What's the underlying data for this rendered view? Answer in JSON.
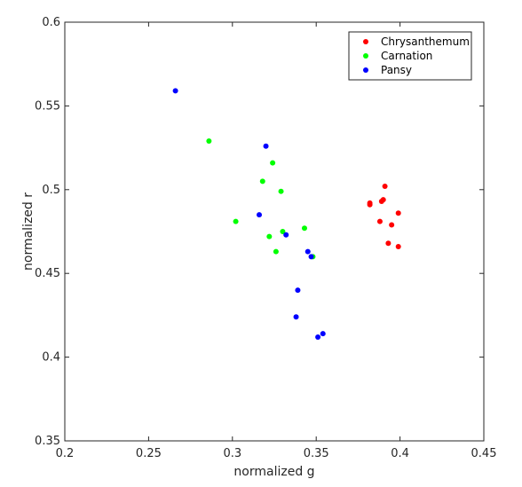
{
  "chart_data": {
    "type": "scatter",
    "xlabel": "normalized g",
    "ylabel": "normalized r",
    "xlim": [
      0.2,
      0.45
    ],
    "ylim": [
      0.35,
      0.6
    ],
    "xticks": [
      "0.2",
      "0.25",
      "0.3",
      "0.35",
      "0.4",
      "0.45"
    ],
    "yticks": [
      "0.35",
      "0.4",
      "0.45",
      "0.5",
      "0.55",
      "0.6"
    ],
    "legend_position": "top-right",
    "grid": false,
    "series": [
      {
        "name": "Chrysanthemum",
        "color": "#ff0000",
        "x": [
          0.391,
          0.382,
          0.389,
          0.39,
          0.382,
          0.399,
          0.388,
          0.395,
          0.393,
          0.399
        ],
        "y": [
          0.502,
          0.492,
          0.493,
          0.494,
          0.491,
          0.486,
          0.481,
          0.479,
          0.468,
          0.466
        ]
      },
      {
        "name": "Carnation",
        "color": "#00ff00",
        "x": [
          0.286,
          0.324,
          0.318,
          0.329,
          0.302,
          0.343,
          0.33,
          0.322,
          0.326,
          0.348
        ],
        "y": [
          0.529,
          0.516,
          0.505,
          0.499,
          0.481,
          0.477,
          0.475,
          0.472,
          0.463,
          0.46
        ]
      },
      {
        "name": "Pansy",
        "color": "#0000ff",
        "x": [
          0.266,
          0.32,
          0.316,
          0.332,
          0.345,
          0.347,
          0.339,
          0.338,
          0.354,
          0.351
        ],
        "y": [
          0.559,
          0.526,
          0.485,
          0.473,
          0.463,
          0.46,
          0.44,
          0.424,
          0.414,
          0.412
        ]
      }
    ]
  }
}
